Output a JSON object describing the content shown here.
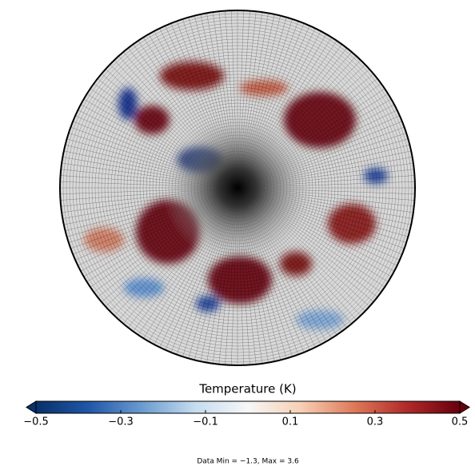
{
  "chart_data": {
    "type": "colorbar-map",
    "colorbar_label": "Temperature (K)",
    "clim": [
      -0.5,
      0.5
    ],
    "ticks": [
      {
        "value": -0.5,
        "label": "−0.5"
      },
      {
        "value": -0.3,
        "label": "−0.3"
      },
      {
        "value": -0.1,
        "label": "−0.1"
      },
      {
        "value": 0.1,
        "label": "0.1"
      },
      {
        "value": 0.3,
        "label": "0.3"
      },
      {
        "value": 0.5,
        "label": "0.5"
      }
    ],
    "colormap": [
      "#08306b",
      "#2157a8",
      "#6a9bd0",
      "#c5dcef",
      "#f7f7f7",
      "#f7cfb5",
      "#de7a5a",
      "#b02a2a",
      "#67000d"
    ],
    "annotation": "Data Min = −1.3, Max = 3.6"
  }
}
